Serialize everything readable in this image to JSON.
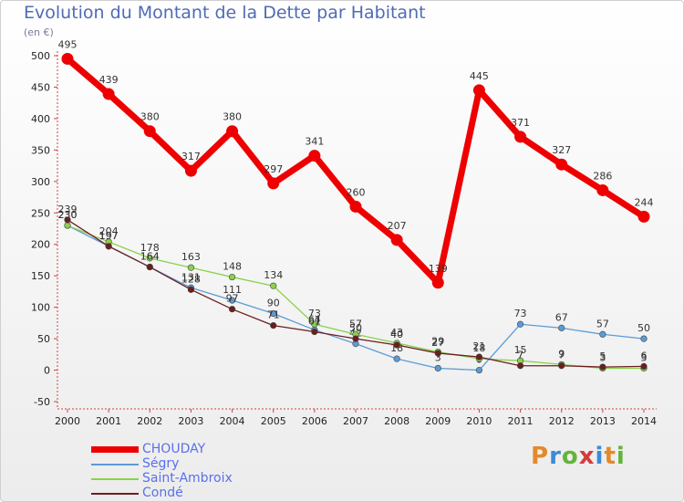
{
  "header": {
    "title": "Evolution du Montant de la Dette par Habitant",
    "unit": "(en €)"
  },
  "logo": {
    "text": "Proxiti",
    "colors": [
      "#e28a2a",
      "#3c8ad8",
      "#62b43c",
      "#d23c3c",
      "#3c8ad8",
      "#e28a2a",
      "#62b43c"
    ]
  },
  "chart_data": {
    "type": "line",
    "x": [
      "2000",
      "2001",
      "2002",
      "2003",
      "2004",
      "2005",
      "2006",
      "2007",
      "2008",
      "2009",
      "2010",
      "2011",
      "2012",
      "2013",
      "2014"
    ],
    "ylim": [
      -50,
      500
    ],
    "yticks": [
      -50,
      0,
      50,
      100,
      150,
      200,
      250,
      300,
      350,
      400,
      450,
      500
    ],
    "grid": false,
    "legend_position": "bottom-left",
    "series": [
      {
        "name": "CHOUDAY",
        "color": "#ee0000",
        "values": [
          495,
          439,
          380,
          317,
          380,
          297,
          341,
          260,
          207,
          139,
          445,
          371,
          327,
          286,
          244
        ]
      },
      {
        "name": "Ségry",
        "color": "#5b9bd5",
        "values": [
          230,
          197,
          164,
          131,
          111,
          90,
          64,
          42,
          18,
          3,
          0,
          73,
          67,
          57,
          50
        ]
      },
      {
        "name": "Saint-Ambroix",
        "color": "#8ad14b",
        "values": [
          230,
          204,
          178,
          163,
          148,
          134,
          73,
          57,
          43,
          29,
          18,
          15,
          9,
          3,
          3
        ]
      },
      {
        "name": "Condé",
        "color": "#6b1e1e",
        "values": [
          239,
          197,
          164,
          128,
          97,
          71,
          61,
          50,
          40,
          27,
          21,
          7,
          7,
          5,
          6
        ]
      }
    ]
  }
}
